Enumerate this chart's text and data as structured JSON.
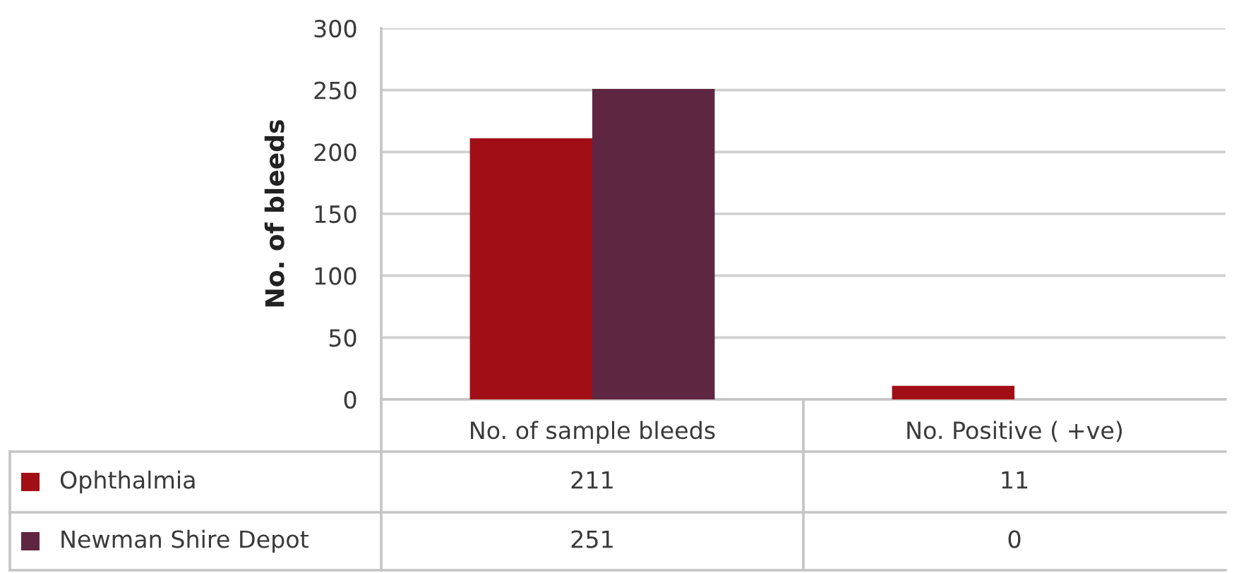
{
  "chart_data": {
    "type": "bar",
    "ylabel": "No. of bleeds",
    "categories": [
      "No. of sample bleeds",
      "No. Positive ( +ve)"
    ],
    "series": [
      {
        "name": "Ophthalmia",
        "color": "#a20e16",
        "values": [
          211,
          11
        ]
      },
      {
        "name": "Newman Shire Depot",
        "color": "#5e2640",
        "values": [
          251,
          0
        ]
      }
    ],
    "ylim": [
      0,
      300
    ],
    "yticks": [
      0,
      50,
      100,
      150,
      200,
      250,
      300
    ],
    "grid": "y",
    "data_labels": true,
    "legend": "bottom"
  }
}
